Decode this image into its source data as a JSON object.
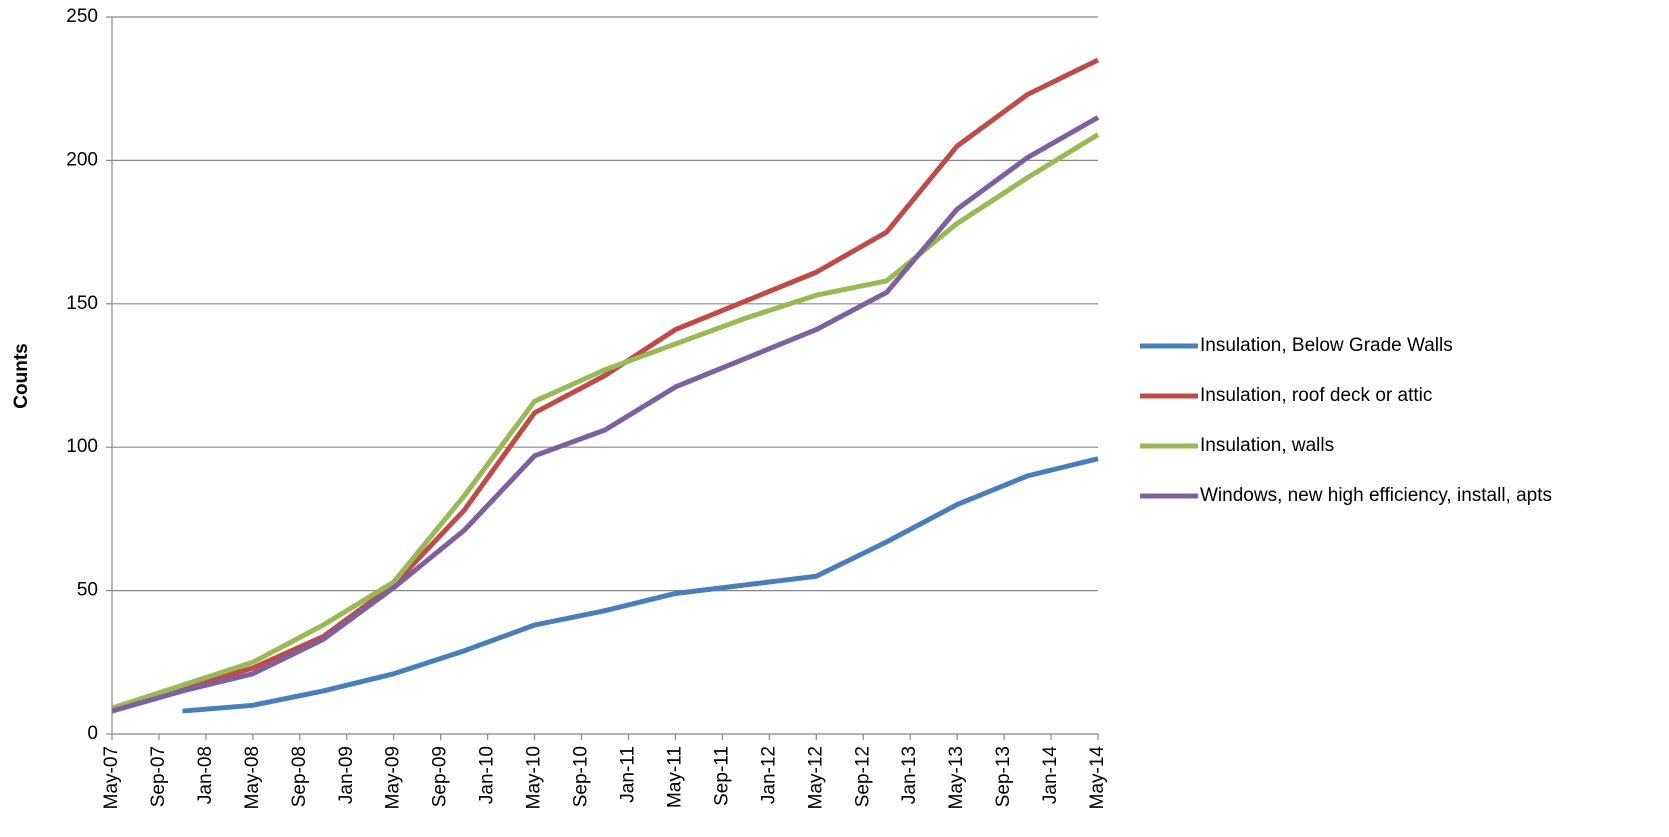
{
  "chart_data": {
    "type": "line",
    "y_label": "Counts",
    "x": [
      "May-07",
      "Nov-07",
      "May-08",
      "Nov-08",
      "May-09",
      "Nov-09",
      "May-10",
      "Nov-10",
      "May-11",
      "Nov-11",
      "May-12",
      "Nov-12",
      "May-13",
      "Nov-13",
      "May-14"
    ],
    "xticks": [
      "May-07",
      "Sep-07",
      "Jan-08",
      "May-08",
      "Sep-08",
      "Jan-09",
      "May-09",
      "Sep-09",
      "Jan-10",
      "May-10",
      "Sep-10",
      "Jan-11",
      "May-11",
      "Sep-11",
      "Jan-12",
      "May-12",
      "Sep-12",
      "Jan-13",
      "May-13",
      "Sep-13",
      "Jan-14",
      "May-14"
    ],
    "ylim": [
      0,
      250
    ],
    "yticks": [
      0,
      50,
      100,
      150,
      200,
      250
    ],
    "grid": true,
    "legend": "right",
    "series": [
      {
        "name": "Insulation, Below Grade Walls",
        "color": "#4a7ebb",
        "values": [
          null,
          8,
          10,
          15,
          21,
          29,
          38,
          43,
          49,
          52,
          55,
          67,
          80,
          90,
          96
        ]
      },
      {
        "name": "Insulation, roof deck or attic",
        "color": "#be4b48",
        "values": [
          9,
          16,
          23,
          34,
          52,
          78,
          112,
          125,
          141,
          151,
          161,
          175,
          205,
          223,
          235
        ]
      },
      {
        "name": "Insulation, walls",
        "color": "#98b954",
        "values": [
          9,
          17,
          25,
          38,
          53,
          83,
          116,
          127,
          136,
          145,
          153,
          158,
          178,
          194,
          209
        ]
      },
      {
        "name": "Windows, new high efficiency, install, apts",
        "color": "#7d60a0",
        "values": [
          8,
          15,
          21,
          33,
          51,
          71,
          97,
          106,
          121,
          131,
          141,
          154,
          183,
          201,
          215
        ]
      }
    ]
  }
}
